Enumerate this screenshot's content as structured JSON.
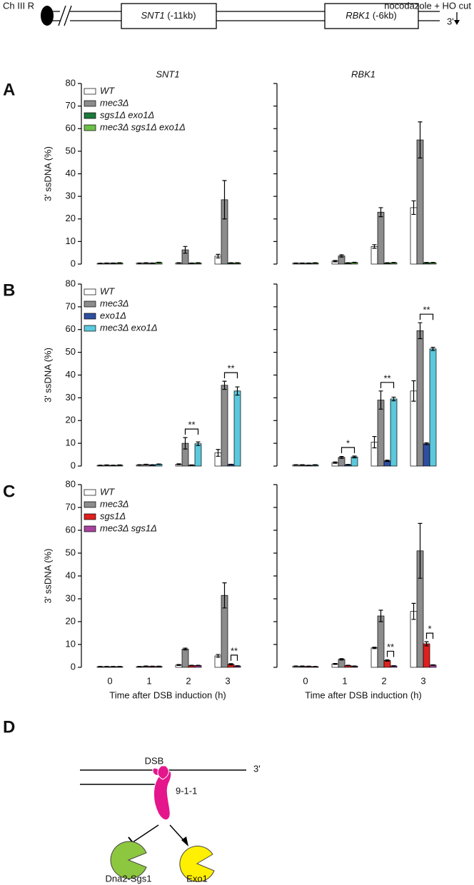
{
  "header": {
    "chromosome": "Ch III R",
    "genes": [
      {
        "name": "SNT1",
        "position": "(-11kb)"
      },
      {
        "name": "RBK1",
        "position": "(-6kb)"
      }
    ],
    "treatment": "nocodazole + HO cut",
    "end": "3'"
  },
  "panels": [
    "A",
    "B",
    "C",
    "D"
  ],
  "chart_data": [
    {
      "type": "bar",
      "title": "SNT1",
      "ylabel": "3' ssDNA (%)",
      "legend": "upper left",
      "categories": [
        "0",
        "1",
        "2",
        "3"
      ],
      "ylim": [
        0,
        80
      ],
      "yticks": [
        0,
        10,
        20,
        30,
        40,
        50,
        60,
        70,
        80
      ],
      "series": [
        {
          "name": "WT",
          "color": "#ffffff",
          "values": [
            0.3,
            0.4,
            0.5,
            3.5
          ],
          "errors": [
            0.1,
            0.1,
            0.1,
            0.8
          ]
        },
        {
          "name": "mec3Δ",
          "color": "#8c8c8c",
          "values": [
            0.4,
            0.5,
            6.3,
            28.5
          ],
          "errors": [
            0.1,
            0.1,
            1.5,
            8.5
          ]
        },
        {
          "name": "sgs1Δ exo1Δ",
          "color": "#1b7a3c",
          "values": [
            0.4,
            0.4,
            0.4,
            0.5
          ],
          "errors": [
            0.1,
            0.1,
            0.1,
            0.1
          ]
        },
        {
          "name": "mec3Δ sgs1Δ exo1Δ",
          "color": "#6cc04a",
          "values": [
            0.5,
            0.7,
            0.5,
            0.5
          ],
          "errors": [
            0.1,
            0.1,
            0.1,
            0.1
          ]
        }
      ]
    },
    {
      "type": "bar",
      "title": "RBK1",
      "categories": [
        "0",
        "1",
        "2",
        "3"
      ],
      "ylim": [
        0,
        80
      ],
      "yticks": [
        0,
        10,
        20,
        30,
        40,
        50,
        60,
        70,
        80
      ],
      "series": [
        {
          "name": "WT",
          "color": "#ffffff",
          "values": [
            0.4,
            1.3,
            7.8,
            25
          ],
          "errors": [
            0.1,
            0.3,
            0.8,
            3
          ]
        },
        {
          "name": "mec3Δ",
          "color": "#8c8c8c",
          "values": [
            0.4,
            3.6,
            23,
            55
          ],
          "errors": [
            0.1,
            0.5,
            2,
            8
          ]
        },
        {
          "name": "sgs1Δ exo1Δ",
          "color": "#1b7a3c",
          "values": [
            0.4,
            0.5,
            0.5,
            0.6
          ],
          "errors": [
            0.1,
            0.1,
            0.1,
            0.1
          ]
        },
        {
          "name": "mec3Δ sgs1Δ exo1Δ",
          "color": "#6cc04a",
          "values": [
            0.5,
            0.7,
            0.6,
            0.6
          ],
          "errors": [
            0.1,
            0.1,
            0.1,
            0.1
          ]
        }
      ]
    },
    {
      "type": "bar",
      "ylabel": "3' ssDNA (%)",
      "legend": "upper left",
      "categories": [
        "0",
        "1",
        "2",
        "3"
      ],
      "ylim": [
        0,
        80
      ],
      "yticks": [
        0,
        10,
        20,
        30,
        40,
        50,
        60,
        70,
        80
      ],
      "series": [
        {
          "name": "WT",
          "color": "#ffffff",
          "values": [
            0.3,
            0.5,
            0.8,
            5.8
          ],
          "errors": [
            0.1,
            0.1,
            0.2,
            1.5
          ]
        },
        {
          "name": "mec3Δ",
          "color": "#8c8c8c",
          "values": [
            0.4,
            0.7,
            10,
            35.5
          ],
          "errors": [
            0.1,
            0.1,
            2.5,
            1.8
          ]
        },
        {
          "name": "exo1Δ",
          "color": "#2f4fa2",
          "values": [
            0.3,
            0.5,
            0.4,
            0.7
          ],
          "errors": [
            0.1,
            0.1,
            0.1,
            0.1
          ]
        },
        {
          "name": "mec3Δ exo1Δ",
          "color": "#5bc8dc",
          "values": [
            0.4,
            0.8,
            9.8,
            33
          ],
          "errors": [
            0.1,
            0.1,
            0.8,
            1.8
          ]
        }
      ],
      "annotations": [
        {
          "category": "2",
          "text": "**",
          "series": [
            "mec3Δ",
            "mec3Δ exo1Δ"
          ]
        },
        {
          "category": "3",
          "text": "**",
          "series": [
            "mec3Δ",
            "mec3Δ exo1Δ"
          ]
        }
      ]
    },
    {
      "type": "bar",
      "categories": [
        "0",
        "1",
        "2",
        "3"
      ],
      "ylim": [
        0,
        80
      ],
      "yticks": [
        0,
        10,
        20,
        30,
        40,
        50,
        60,
        70,
        80
      ],
      "series": [
        {
          "name": "WT",
          "color": "#ffffff",
          "values": [
            0.5,
            1.5,
            10.5,
            33
          ],
          "errors": [
            0.1,
            0.3,
            2.5,
            4.5
          ]
        },
        {
          "name": "mec3Δ",
          "color": "#8c8c8c",
          "values": [
            0.5,
            3.8,
            29,
            59.5
          ],
          "errors": [
            0.1,
            0.4,
            4,
            3.5
          ]
        },
        {
          "name": "exo1Δ",
          "color": "#2f4fa2",
          "values": [
            0.3,
            0.6,
            2.3,
            9.8
          ],
          "errors": [
            0.1,
            0.1,
            0.3,
            0.4
          ]
        },
        {
          "name": "mec3Δ exo1Δ",
          "color": "#5bc8dc",
          "values": [
            0.5,
            4,
            29.5,
            51.5
          ],
          "errors": [
            0.1,
            0.4,
            0.8,
            0.7
          ]
        }
      ],
      "annotations": [
        {
          "category": "1",
          "text": "*",
          "series": [
            "mec3Δ",
            "mec3Δ exo1Δ"
          ]
        },
        {
          "category": "2",
          "text": "**",
          "series": [
            "mec3Δ",
            "mec3Δ exo1Δ"
          ]
        },
        {
          "category": "3",
          "text": "**",
          "series": [
            "mec3Δ",
            "mec3Δ exo1Δ"
          ]
        }
      ]
    },
    {
      "type": "bar",
      "ylabel": "3' ssDNA (%)",
      "xlabel": "Time after DSB induction (h)",
      "legend": "upper left",
      "categories": [
        "0",
        "1",
        "2",
        "3"
      ],
      "ylim": [
        0,
        80
      ],
      "yticks": [
        0,
        10,
        20,
        30,
        40,
        50,
        60,
        70,
        80
      ],
      "series": [
        {
          "name": "WT",
          "color": "#ffffff",
          "values": [
            0.3,
            0.3,
            1,
            5
          ],
          "errors": [
            0.1,
            0.1,
            0.2,
            0.6
          ]
        },
        {
          "name": "mec3Δ",
          "color": "#8c8c8c",
          "values": [
            0.3,
            0.5,
            8,
            31.5
          ],
          "errors": [
            0.1,
            0.1,
            0.4,
            5.5
          ]
        },
        {
          "name": "sgs1Δ",
          "color": "#e0201e",
          "values": [
            0.3,
            0.4,
            0.8,
            1.3
          ],
          "errors": [
            0.1,
            0.1,
            0.1,
            0.3
          ]
        },
        {
          "name": "mec3Δ sgs1Δ",
          "color": "#a843a0",
          "values": [
            0.3,
            0.4,
            0.8,
            0.6
          ],
          "errors": [
            0.1,
            0.1,
            0.1,
            0.1
          ]
        }
      ],
      "annotations": [
        {
          "category": "3",
          "text": "**",
          "series": [
            "sgs1Δ",
            "mec3Δ sgs1Δ"
          ]
        }
      ]
    },
    {
      "type": "bar",
      "xlabel": "Time after DSB induction (h)",
      "categories": [
        "0",
        "1",
        "2",
        "3"
      ],
      "ylim": [
        0,
        80
      ],
      "yticks": [
        0,
        10,
        20,
        30,
        40,
        50,
        60,
        70,
        80
      ],
      "series": [
        {
          "name": "WT",
          "color": "#ffffff",
          "values": [
            0.5,
            1.5,
            8.5,
            24.5
          ],
          "errors": [
            0.1,
            0.2,
            0.3,
            3.5
          ]
        },
        {
          "name": "mec3Δ",
          "color": "#8c8c8c",
          "values": [
            0.5,
            3.5,
            22.5,
            51
          ],
          "errors": [
            0.1,
            0.3,
            2.5,
            12
          ]
        },
        {
          "name": "sgs1Δ",
          "color": "#e0201e",
          "values": [
            0.4,
            0.8,
            3,
            10.3
          ],
          "errors": [
            0.1,
            0.1,
            0.3,
            0.9
          ]
        },
        {
          "name": "mec3Δ sgs1Δ",
          "color": "#a843a0",
          "values": [
            0.3,
            0.5,
            0.6,
            1
          ],
          "errors": [
            0.1,
            0.1,
            0.1,
            0.1
          ]
        }
      ],
      "annotations": [
        {
          "category": "2",
          "text": "**",
          "series": [
            "sgs1Δ",
            "mec3Δ sgs1Δ"
          ]
        },
        {
          "category": "3",
          "text": "*",
          "series": [
            "sgs1Δ",
            "mec3Δ sgs1Δ"
          ]
        }
      ]
    }
  ],
  "model": {
    "site": "DSB",
    "clamp": "9-1-1",
    "end": "3'",
    "nucleases": [
      "Dna2-Sgs1",
      "Exo1"
    ]
  }
}
